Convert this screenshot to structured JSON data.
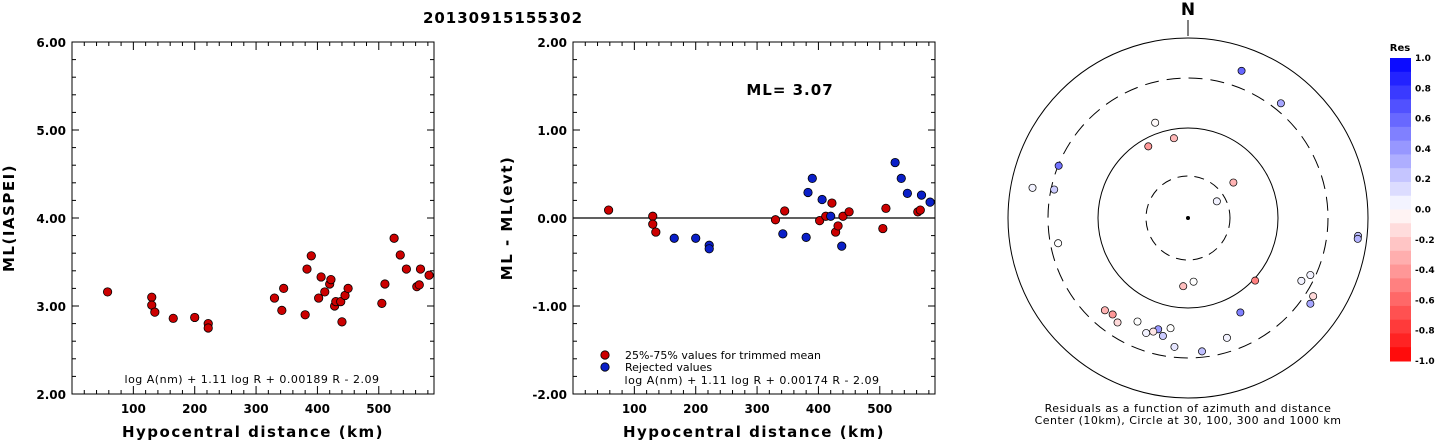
{
  "header": {
    "event_id": "20130915155302"
  },
  "colors": {
    "accepted": "#cc0000",
    "rejected": "#0a1fc8"
  },
  "chart_data": [
    {
      "type": "scatter",
      "xlabel": "Hypocentral distance (km)",
      "ylabel": "ML(IASPEI)",
      "xlim": [
        0,
        590
      ],
      "ylim": [
        2.0,
        6.0
      ],
      "xticks": [
        "100",
        "200",
        "300",
        "400",
        "500"
      ],
      "yticks": [
        "2.00",
        "3.00",
        "4.00",
        "5.00",
        "6.00"
      ],
      "formula": "log A(nm) + 1.11 log R + 0.00189 R - 2.09",
      "series": [
        {
          "points": [
            [
              58,
              3.16
            ],
            [
              130,
              3.1
            ],
            [
              130,
              3.01
            ],
            [
              135,
              2.93
            ],
            [
              165,
              2.86
            ],
            [
              200,
              2.87
            ],
            [
              222,
              2.8
            ],
            [
              222,
              2.75
            ],
            [
              330,
              3.09
            ],
            [
              342,
              2.95
            ],
            [
              345,
              3.2
            ],
            [
              380,
              2.9
            ],
            [
              383,
              3.42
            ],
            [
              390,
              3.57
            ],
            [
              402,
              3.09
            ],
            [
              406,
              3.33
            ],
            [
              412,
              3.16
            ],
            [
              420,
              3.25
            ],
            [
              422,
              3.3
            ],
            [
              428,
              3.0
            ],
            [
              430,
              3.05
            ],
            [
              438,
              3.05
            ],
            [
              440,
              2.82
            ],
            [
              445,
              3.12
            ],
            [
              450,
              3.2
            ],
            [
              505,
              3.03
            ],
            [
              510,
              3.25
            ],
            [
              525,
              3.77
            ],
            [
              535,
              3.58
            ],
            [
              545,
              3.42
            ],
            [
              562,
              3.22
            ],
            [
              566,
              3.24
            ],
            [
              568,
              3.42
            ],
            [
              582,
              3.35
            ]
          ]
        }
      ]
    },
    {
      "type": "scatter",
      "xlabel": "Hypocentral distance (km)",
      "ylabel": "ML - ML(evt)",
      "xlim": [
        0,
        590
      ],
      "ylim": [
        -2.0,
        2.0
      ],
      "xticks": [
        "100",
        "200",
        "300",
        "400",
        "500"
      ],
      "yticks": [
        "-2.00",
        "-1.00",
        "0.00",
        "1.00",
        "2.00"
      ],
      "annotation": "ML= 3.07",
      "formula": "log A(nm) + 1.11 log R + 0.00174 R - 2.09",
      "legend": [
        "25%-75% values for trimmed mean",
        "Rejected values"
      ],
      "series": [
        {
          "name": "25%-75% values for trimmed mean",
          "points": [
            [
              58,
              0.09
            ],
            [
              130,
              0.02
            ],
            [
              130,
              -0.07
            ],
            [
              135,
              -0.16
            ],
            [
              330,
              -0.02
            ],
            [
              345,
              0.08
            ],
            [
              402,
              -0.03
            ],
            [
              412,
              0.02
            ],
            [
              422,
              0.17
            ],
            [
              428,
              -0.16
            ],
            [
              432,
              -0.09
            ],
            [
              440,
              0.02
            ],
            [
              450,
              0.07
            ],
            [
              505,
              -0.12
            ],
            [
              510,
              0.11
            ],
            [
              562,
              0.07
            ],
            [
              566,
              0.09
            ]
          ]
        },
        {
          "name": "Rejected values",
          "points": [
            [
              165,
              -0.23
            ],
            [
              200,
              -0.23
            ],
            [
              222,
              -0.31
            ],
            [
              222,
              -0.35
            ],
            [
              342,
              -0.18
            ],
            [
              380,
              -0.22
            ],
            [
              383,
              0.29
            ],
            [
              390,
              0.45
            ],
            [
              406,
              0.21
            ],
            [
              420,
              0.02
            ],
            [
              438,
              -0.32
            ],
            [
              525,
              0.63
            ],
            [
              535,
              0.45
            ],
            [
              545,
              0.28
            ],
            [
              568,
              0.26
            ],
            [
              582,
              0.18
            ]
          ]
        }
      ]
    },
    {
      "type": "scatter",
      "north_label": "N",
      "colorbar_title": "Res",
      "colorbar_ticks": [
        "1.0",
        "0.8",
        "0.6",
        "0.4",
        "0.2",
        "0.0",
        "-0.2",
        "-0.4",
        "-0.6",
        "-0.8",
        "-1.0"
      ],
      "caption_line1": "Residuals as a function of azimuth and distance",
      "caption_line2": "Center (10km), Circle at 30, 100, 300 and 1000 km",
      "points": [
        {
          "az": 20,
          "dist": 870,
          "res": 0.6
        },
        {
          "az": 341,
          "dist": 560,
          "res": -0.02
        },
        {
          "az": 350,
          "dist": 450,
          "res": -0.28
        },
        {
          "az": 331,
          "dist": 455,
          "res": -0.4
        },
        {
          "az": 39,
          "dist": 820,
          "res": 0.35
        },
        {
          "az": 60,
          "dist": 185,
          "res": 0.05
        },
        {
          "az": 52,
          "dist": 320,
          "res": -0.3
        },
        {
          "az": 292,
          "dist": 775,
          "res": 0.55
        },
        {
          "az": 282,
          "dist": 760,
          "res": 0.2
        },
        {
          "az": 281,
          "dist": 880,
          "res": 0.05
        },
        {
          "az": 259,
          "dist": 735,
          "res": 0.0
        },
        {
          "az": 96,
          "dist": 950,
          "res": 0.25
        },
        {
          "az": 97,
          "dist": 950,
          "res": 0.3
        },
        {
          "az": 115,
          "dist": 750,
          "res": 0.05
        },
        {
          "az": 119,
          "dist": 720,
          "res": 0.05
        },
        {
          "az": 122,
          "dist": 820,
          "res": -0.15
        },
        {
          "az": 125,
          "dist": 830,
          "res": 0.35
        },
        {
          "az": 133,
          "dist": 510,
          "res": -0.5
        },
        {
          "az": 151,
          "dist": 600,
          "res": 0.5
        },
        {
          "az": 162,
          "dist": 700,
          "res": 0.05
        },
        {
          "az": 175,
          "dist": 355,
          "res": 0.0
        },
        {
          "az": 174,
          "dist": 745,
          "res": 0.25
        },
        {
          "az": 184,
          "dist": 380,
          "res": -0.25
        },
        {
          "az": 186,
          "dist": 720,
          "res": 0.1
        },
        {
          "az": 189,
          "dist": 620,
          "res": 0.0
        },
        {
          "az": 192,
          "dist": 670,
          "res": 0.2
        },
        {
          "az": 195,
          "dist": 640,
          "res": 0.4
        },
        {
          "az": 197,
          "dist": 660,
          "res": -0.1
        },
        {
          "az": 200,
          "dist": 680,
          "res": 0.05
        },
        {
          "az": 206,
          "dist": 640,
          "res": 0.0
        },
        {
          "az": 214,
          "dist": 700,
          "res": -0.15
        },
        {
          "az": 218,
          "dist": 680,
          "res": -0.4
        },
        {
          "az": 222,
          "dist": 690,
          "res": -0.3
        }
      ]
    }
  ]
}
